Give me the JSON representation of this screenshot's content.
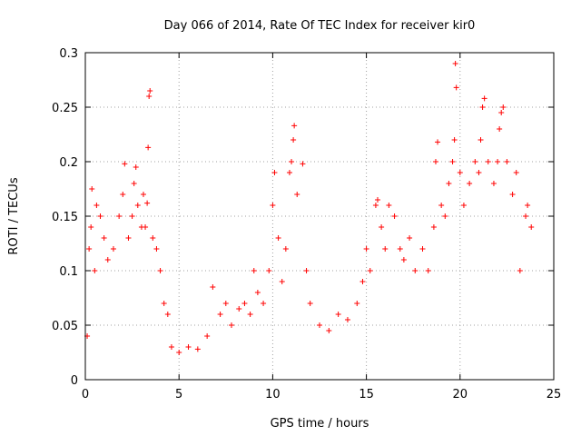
{
  "chart_data": {
    "type": "scatter",
    "title": "Day 066 of 2014, Rate Of TEC Index for receiver kir0",
    "xlabel": "GPS time / hours",
    "ylabel": "ROTI / TECUs",
    "xlim": [
      0,
      25
    ],
    "ylim": [
      0,
      0.3
    ],
    "xticks": [
      0,
      5,
      10,
      15,
      20,
      25
    ],
    "yticks": [
      0,
      0.05,
      0.1,
      0.15,
      0.2,
      0.25,
      0.3
    ],
    "xtick_labels": [
      "0",
      "5",
      "10",
      "15",
      "20",
      "25"
    ],
    "ytick_labels": [
      "0",
      "0.05",
      "0.1",
      "0.15",
      "0.2",
      "0.25",
      "0.3"
    ],
    "grid": true,
    "marker": "+",
    "color": "#ff0000",
    "series": [
      {
        "name": "ROTI",
        "points": [
          [
            0.1,
            0.04
          ],
          [
            0.2,
            0.12
          ],
          [
            0.3,
            0.14
          ],
          [
            0.35,
            0.175
          ],
          [
            0.5,
            0.1
          ],
          [
            0.6,
            0.16
          ],
          [
            0.8,
            0.15
          ],
          [
            1.0,
            0.13
          ],
          [
            1.2,
            0.11
          ],
          [
            1.5,
            0.12
          ],
          [
            1.8,
            0.15
          ],
          [
            2.0,
            0.17
          ],
          [
            2.1,
            0.198
          ],
          [
            2.3,
            0.13
          ],
          [
            2.5,
            0.15
          ],
          [
            2.6,
            0.18
          ],
          [
            2.7,
            0.195
          ],
          [
            2.8,
            0.16
          ],
          [
            3.0,
            0.14
          ],
          [
            3.1,
            0.17
          ],
          [
            3.2,
            0.14
          ],
          [
            3.3,
            0.162
          ],
          [
            3.35,
            0.213
          ],
          [
            3.4,
            0.26
          ],
          [
            3.45,
            0.265
          ],
          [
            3.6,
            0.13
          ],
          [
            3.8,
            0.12
          ],
          [
            4.0,
            0.1
          ],
          [
            4.2,
            0.07
          ],
          [
            4.4,
            0.06
          ],
          [
            4.6,
            0.03
          ],
          [
            5.0,
            0.025
          ],
          [
            5.5,
            0.03
          ],
          [
            6.0,
            0.028
          ],
          [
            6.5,
            0.04
          ],
          [
            6.8,
            0.085
          ],
          [
            7.2,
            0.06
          ],
          [
            7.5,
            0.07
          ],
          [
            7.8,
            0.05
          ],
          [
            8.2,
            0.065
          ],
          [
            8.5,
            0.07
          ],
          [
            8.8,
            0.06
          ],
          [
            9.0,
            0.1
          ],
          [
            9.2,
            0.08
          ],
          [
            9.5,
            0.07
          ],
          [
            9.8,
            0.1
          ],
          [
            10.0,
            0.16
          ],
          [
            10.1,
            0.19
          ],
          [
            10.3,
            0.13
          ],
          [
            10.5,
            0.09
          ],
          [
            10.7,
            0.12
          ],
          [
            10.9,
            0.19
          ],
          [
            11.0,
            0.2
          ],
          [
            11.1,
            0.22
          ],
          [
            11.15,
            0.233
          ],
          [
            11.3,
            0.17
          ],
          [
            11.6,
            0.198
          ],
          [
            11.8,
            0.1
          ],
          [
            12.0,
            0.07
          ],
          [
            12.5,
            0.05
          ],
          [
            13.0,
            0.045
          ],
          [
            13.5,
            0.06
          ],
          [
            14.0,
            0.055
          ],
          [
            14.5,
            0.07
          ],
          [
            14.8,
            0.09
          ],
          [
            15.0,
            0.12
          ],
          [
            15.2,
            0.1
          ],
          [
            15.5,
            0.16
          ],
          [
            15.6,
            0.165
          ],
          [
            15.8,
            0.14
          ],
          [
            16.0,
            0.12
          ],
          [
            16.2,
            0.16
          ],
          [
            16.5,
            0.15
          ],
          [
            16.8,
            0.12
          ],
          [
            17.0,
            0.11
          ],
          [
            17.3,
            0.13
          ],
          [
            17.6,
            0.1
          ],
          [
            18.0,
            0.12
          ],
          [
            18.3,
            0.1
          ],
          [
            18.6,
            0.14
          ],
          [
            18.7,
            0.2
          ],
          [
            18.8,
            0.218
          ],
          [
            19.0,
            0.16
          ],
          [
            19.2,
            0.15
          ],
          [
            19.4,
            0.18
          ],
          [
            19.6,
            0.2
          ],
          [
            19.7,
            0.22
          ],
          [
            19.8,
            0.268
          ],
          [
            19.75,
            0.29
          ],
          [
            20.0,
            0.19
          ],
          [
            20.2,
            0.16
          ],
          [
            20.5,
            0.18
          ],
          [
            20.8,
            0.2
          ],
          [
            21.0,
            0.19
          ],
          [
            21.1,
            0.22
          ],
          [
            21.2,
            0.25
          ],
          [
            21.3,
            0.258
          ],
          [
            21.5,
            0.2
          ],
          [
            21.8,
            0.18
          ],
          [
            22.0,
            0.2
          ],
          [
            22.1,
            0.23
          ],
          [
            22.2,
            0.245
          ],
          [
            22.3,
            0.25
          ],
          [
            22.5,
            0.2
          ],
          [
            22.8,
            0.17
          ],
          [
            23.0,
            0.19
          ],
          [
            23.2,
            0.1
          ],
          [
            23.5,
            0.15
          ],
          [
            23.6,
            0.16
          ],
          [
            23.8,
            0.14
          ]
        ]
      }
    ]
  }
}
